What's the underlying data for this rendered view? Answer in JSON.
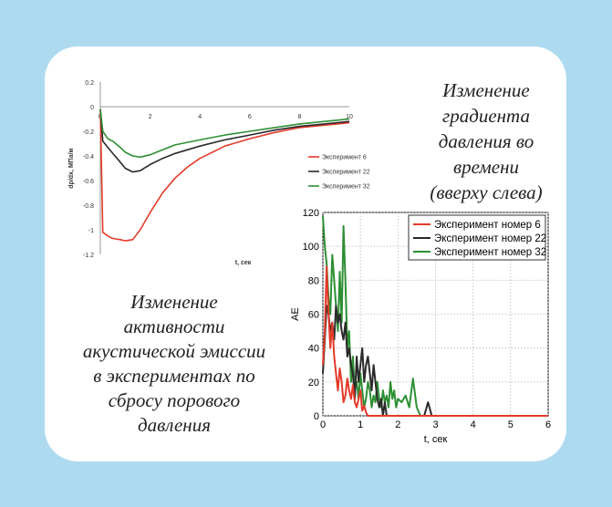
{
  "colors": {
    "background": "#aedaf0",
    "card": "#ffffff",
    "red": "#e53a2a",
    "black": "#2a2a2a",
    "green": "#2e8f34"
  },
  "captions": {
    "top": "Изменение\nградиента\nдавления во\nвремени\n(вверху слева)",
    "bottom": "Изменение\nактивности\nакустической эмиссии\nв экспериментах по\nсбросу порового\nдавления"
  },
  "chart_data": [
    {
      "type": "line",
      "xlabel": "t, сек",
      "ylabel": "dp/dx, МПа/м",
      "xlim": [
        0,
        10
      ],
      "ylim": [
        -1.2,
        0.2
      ],
      "x_ticks": [
        "0",
        "2",
        "4",
        "6",
        "8",
        "10"
      ],
      "y_ticks": [
        "0.2",
        "0",
        "-0.2",
        "-0.4",
        "-0.6",
        "-0.8",
        "-1",
        "-1.2"
      ],
      "grid": false,
      "legend_position": "right",
      "series": [
        {
          "name": "Эксперимент 6",
          "color": "#e53a2a",
          "x": [
            0,
            0.1,
            0.3,
            0.5,
            0.8,
            1.0,
            1.3,
            1.6,
            2.0,
            2.5,
            3.0,
            3.5,
            4.0,
            5.0,
            6.0,
            7.0,
            8.0,
            9.0,
            10.0
          ],
          "y": [
            -0.02,
            -1.02,
            -1.05,
            -1.07,
            -1.08,
            -1.09,
            -1.08,
            -1.0,
            -0.86,
            -0.7,
            -0.58,
            -0.49,
            -0.42,
            -0.32,
            -0.26,
            -0.21,
            -0.17,
            -0.15,
            -0.13
          ]
        },
        {
          "name": "Эксперимент 22",
          "color": "#2a2a2a",
          "x": [
            0,
            0.1,
            0.3,
            0.5,
            0.8,
            1.0,
            1.3,
            1.6,
            2.0,
            2.5,
            3.0,
            4.0,
            5.0,
            6.0,
            7.0,
            8.0,
            9.0,
            10.0
          ],
          "y": [
            -0.02,
            -0.28,
            -0.33,
            -0.38,
            -0.45,
            -0.5,
            -0.53,
            -0.52,
            -0.47,
            -0.42,
            -0.38,
            -0.32,
            -0.27,
            -0.23,
            -0.19,
            -0.16,
            -0.14,
            -0.12
          ]
        },
        {
          "name": "Эксперимент 32",
          "color": "#2e8f34",
          "x": [
            0,
            0.1,
            0.3,
            0.5,
            0.8,
            1.0,
            1.3,
            1.6,
            2.0,
            2.5,
            3.0,
            4.0,
            5.0,
            6.0,
            7.0,
            8.0,
            9.0,
            10.0
          ],
          "y": [
            -0.02,
            -0.2,
            -0.26,
            -0.28,
            -0.33,
            -0.37,
            -0.4,
            -0.41,
            -0.39,
            -0.35,
            -0.31,
            -0.27,
            -0.23,
            -0.2,
            -0.17,
            -0.14,
            -0.12,
            -0.1
          ]
        }
      ]
    },
    {
      "type": "line",
      "xlabel": "t, сек",
      "ylabel": "AE",
      "xlim": [
        0,
        6
      ],
      "ylim": [
        0,
        120
      ],
      "x_ticks": [
        "0",
        "1",
        "2",
        "3",
        "4",
        "5",
        "6"
      ],
      "y_ticks": [
        "0",
        "20",
        "40",
        "60",
        "80",
        "100",
        "120"
      ],
      "grid": true,
      "legend_position": "top-right",
      "series": [
        {
          "name": "Эксперимент номер 6",
          "color": "#e53a2a",
          "x": [
            0,
            0.05,
            0.1,
            0.15,
            0.2,
            0.25,
            0.3,
            0.35,
            0.4,
            0.45,
            0.5,
            0.55,
            0.6,
            0.65,
            0.7,
            0.75,
            0.8,
            0.85,
            0.9,
            0.95,
            1.0,
            1.05,
            1.1,
            1.15,
            1.2,
            1.3,
            1.5,
            1.7,
            1.9,
            6.0
          ],
          "y": [
            30,
            50,
            88,
            60,
            40,
            55,
            35,
            25,
            15,
            28,
            20,
            8,
            12,
            22,
            15,
            10,
            18,
            8,
            5,
            10,
            15,
            3,
            6,
            2,
            0,
            0,
            0,
            0,
            0,
            0
          ]
        },
        {
          "name": "Эксперимент номер 22",
          "color": "#2a2a2a",
          "x": [
            0,
            0.05,
            0.1,
            0.15,
            0.2,
            0.25,
            0.3,
            0.35,
            0.4,
            0.45,
            0.5,
            0.55,
            0.6,
            0.65,
            0.7,
            0.75,
            0.8,
            0.85,
            0.9,
            0.95,
            1.0,
            1.05,
            1.1,
            1.15,
            1.2,
            1.25,
            1.3,
            1.35,
            1.4,
            1.45,
            1.5,
            1.55,
            1.6,
            1.65,
            1.7,
            1.8,
            2.0,
            2.5,
            2.7,
            2.8,
            2.9,
            3.0,
            6.0
          ],
          "y": [
            25,
            45,
            65,
            60,
            50,
            55,
            45,
            65,
            55,
            60,
            50,
            45,
            55,
            35,
            40,
            30,
            25,
            10,
            35,
            20,
            30,
            40,
            20,
            30,
            35,
            25,
            15,
            30,
            20,
            10,
            5,
            10,
            0,
            8,
            0,
            0,
            0,
            0,
            0,
            8,
            0,
            0,
            0
          ]
        },
        {
          "name": "Эксперимент номер 32",
          "color": "#2e8f34",
          "x": [
            0,
            0.05,
            0.1,
            0.15,
            0.2,
            0.25,
            0.3,
            0.35,
            0.4,
            0.45,
            0.5,
            0.55,
            0.6,
            0.65,
            0.7,
            0.75,
            0.8,
            0.85,
            0.9,
            0.95,
            1.0,
            1.05,
            1.1,
            1.15,
            1.2,
            1.25,
            1.3,
            1.35,
            1.4,
            1.45,
            1.5,
            1.55,
            1.6,
            1.65,
            1.7,
            1.75,
            1.8,
            1.85,
            1.9,
            1.95,
            2.0,
            2.1,
            2.2,
            2.3,
            2.4,
            2.5,
            2.6,
            6.0
          ],
          "y": [
            118,
            100,
            90,
            70,
            60,
            95,
            80,
            65,
            50,
            85,
            55,
            112,
            80,
            40,
            50,
            20,
            35,
            15,
            20,
            10,
            25,
            15,
            5,
            10,
            20,
            15,
            5,
            12,
            8,
            20,
            10,
            5,
            15,
            8,
            12,
            5,
            20,
            10,
            15,
            5,
            10,
            8,
            12,
            5,
            22,
            5,
            0,
            0
          ]
        }
      ]
    }
  ]
}
